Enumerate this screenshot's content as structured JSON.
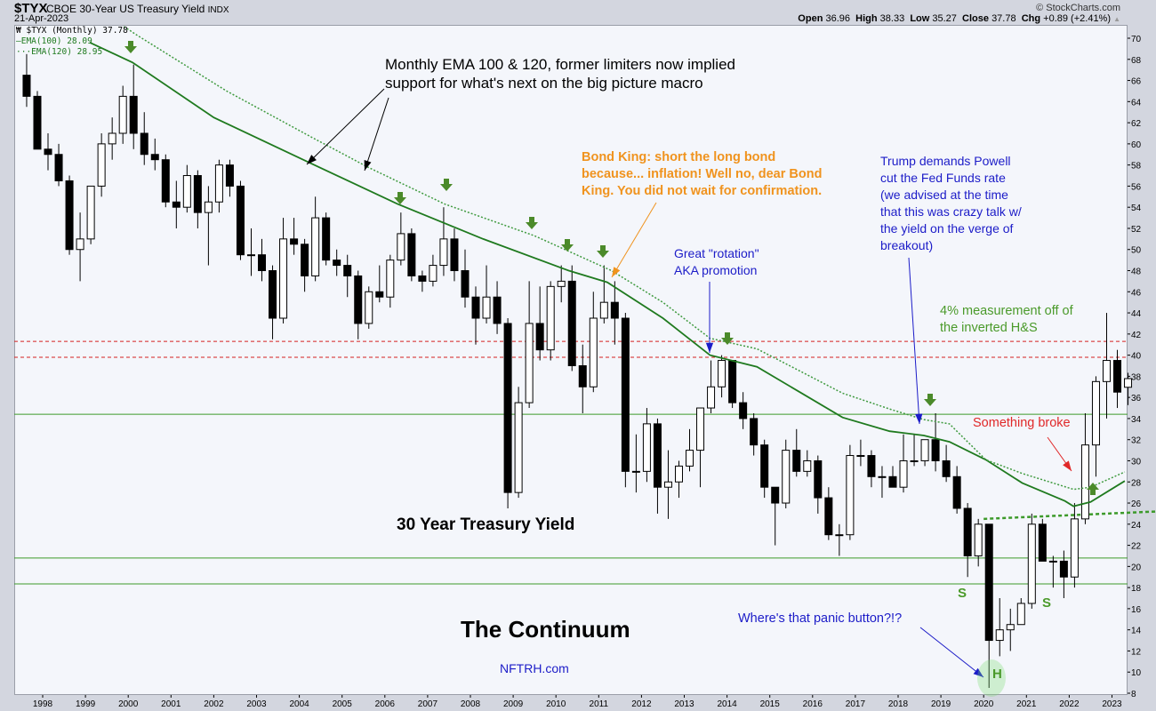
{
  "header": {
    "symbol": "$TYX",
    "name": "CBOE 30-Year US Treasury Yield",
    "exchange": "INDX",
    "date": "21-Apr-2023",
    "brand": "© StockCharts.com",
    "open_label": "Open",
    "open": "36.96",
    "high_label": "High",
    "high": "38.33",
    "low_label": "Low",
    "low": "35.27",
    "close_label": "Close",
    "close": "37.78",
    "chg_label": "Chg",
    "chg": "+0.89 (+2.41%)"
  },
  "legend": {
    "price": "$TYX (Monthly) 37.78",
    "ema100": "EMA(100) 28.09",
    "ema120": "EMA(120) 28.95"
  },
  "colors": {
    "ema": "#1f7a1f",
    "support_line": "#3c9a2a",
    "resistance_line": "#d42020",
    "arrow_green": "#4b8a2a",
    "annotation_orange": "#f0931e",
    "annotation_blue": "#1c1cc8",
    "annotation_green": "#4a9a2a",
    "annotation_red": "#e02828"
  },
  "annotations": {
    "ema_note": [
      "Monthly EMA 100 & 120, former limiters now implied",
      "support for what's next on the big picture macro"
    ],
    "bond_king": [
      "Bond King: short the long bond",
      "because... inflation! Well no, dear Bond",
      "King. You did not wait for confirmation."
    ],
    "rotation": [
      "Great \"rotation\"",
      "AKA promotion"
    ],
    "trump": [
      "Trump demands Powell",
      "cut the Fed Funds rate",
      "(we advised at the time",
      "that this was crazy talk w/",
      "the yield on the verge of",
      "breakout)"
    ],
    "measurement": [
      "4% measurement off of",
      "the inverted H&S"
    ],
    "broke": "Something broke",
    "panic": "Where's that panic button?!?",
    "title": "30 Year Treasury Yield",
    "continuum": "The Continuum",
    "site": "NFTRH.com",
    "shoulder_left": "S",
    "shoulder_right": "S",
    "head": "H"
  },
  "chart_data": {
    "type": "candlestick",
    "interval": "quarterly (approximated from monthly bars)",
    "ylim": [
      8,
      70
    ],
    "yticks": [
      8,
      10,
      12,
      14,
      16,
      18,
      20,
      22,
      24,
      26,
      28,
      30,
      32,
      34,
      36,
      38,
      40,
      42,
      44,
      46,
      48,
      50,
      52,
      54,
      56,
      58,
      60,
      62,
      64,
      66,
      68,
      70
    ],
    "xticks": [
      "1998",
      "1999",
      "2000",
      "2001",
      "2002",
      "2003",
      "2004",
      "2005",
      "2006",
      "2007",
      "2008",
      "2009",
      "2010",
      "2011",
      "2012",
      "2013",
      "2014",
      "2015",
      "2016",
      "2017",
      "2018",
      "2019",
      "2020",
      "2021",
      "2022",
      "2023"
    ],
    "grid": false,
    "axis_position": "right",
    "candles_columns": [
      "period",
      "open",
      "high",
      "low",
      "close"
    ],
    "candles": [
      [
        "1997Q3",
        66.5,
        68.5,
        63.5,
        64.5
      ],
      [
        "1997Q4",
        64.5,
        65,
        59.5,
        59.5
      ],
      [
        "1998Q1",
        59.5,
        61,
        57.5,
        59
      ],
      [
        "1998Q2",
        59,
        60,
        56,
        56.5
      ],
      [
        "1998Q3",
        56.5,
        57,
        49.5,
        50
      ],
      [
        "1998Q4",
        50,
        53.5,
        47,
        51
      ],
      [
        "1999Q1",
        51,
        56,
        50.5,
        56
      ],
      [
        "1999Q2",
        56,
        61,
        55,
        60
      ],
      [
        "1999Q3",
        60,
        62.5,
        58.5,
        61
      ],
      [
        "1999Q4",
        61,
        65.5,
        60,
        64.5
      ],
      [
        "2000Q1",
        64.5,
        67.5,
        59.5,
        61
      ],
      [
        "2000Q2",
        61,
        63,
        58,
        59
      ],
      [
        "2000Q3",
        59,
        60.5,
        57.5,
        58.5
      ],
      [
        "2000Q4",
        58.5,
        59,
        54,
        54.5
      ],
      [
        "2001Q1",
        54.5,
        56.5,
        52,
        54
      ],
      [
        "2001Q2",
        54,
        58,
        53.5,
        57
      ],
      [
        "2001Q3",
        57,
        57.5,
        52,
        53.5
      ],
      [
        "2001Q4",
        53.5,
        56,
        48.5,
        54.5
      ],
      [
        "2002Q1",
        54.5,
        58.5,
        53.5,
        58
      ],
      [
        "2002Q2",
        58,
        58.5,
        55,
        56
      ],
      [
        "2002Q3",
        56,
        56.5,
        49,
        49.5
      ],
      [
        "2002Q4",
        49.5,
        52,
        47.5,
        49.5
      ],
      [
        "2003Q1",
        49.5,
        51,
        47,
        48
      ],
      [
        "2003Q2",
        48,
        48.5,
        41.5,
        43.5
      ],
      [
        "2003Q3",
        43.5,
        53,
        43,
        51
      ],
      [
        "2003Q4",
        51,
        53,
        49.5,
        50.5
      ],
      [
        "2004Q1",
        50.5,
        51,
        46,
        47.5
      ],
      [
        "2004Q2",
        47.5,
        55,
        47,
        53
      ],
      [
        "2004Q3",
        53,
        53.5,
        48.5,
        49
      ],
      [
        "2004Q4",
        49,
        50,
        47.5,
        48.5
      ],
      [
        "2005Q1",
        48.5,
        49.5,
        45.5,
        47.5
      ],
      [
        "2005Q2",
        47.5,
        48,
        41.5,
        43
      ],
      [
        "2005Q3",
        43,
        46.5,
        42.5,
        46
      ],
      [
        "2005Q4",
        46,
        48.5,
        45,
        45.5
      ],
      [
        "2006Q1",
        45.5,
        49.5,
        44.5,
        49
      ],
      [
        "2006Q2",
        49,
        53.5,
        48.5,
        51.5
      ],
      [
        "2006Q3",
        51.5,
        52,
        47,
        47.5
      ],
      [
        "2006Q4",
        47.5,
        48,
        46,
        47
      ],
      [
        "2007Q1",
        47,
        49.5,
        46.5,
        48.5
      ],
      [
        "2007Q2",
        48.5,
        54,
        47.5,
        51
      ],
      [
        "2007Q3",
        51,
        52,
        47,
        48
      ],
      [
        "2007Q4",
        48,
        50,
        44.5,
        45.5
      ],
      [
        "2008Q1",
        45.5,
        46.5,
        41,
        43.5
      ],
      [
        "2008Q2",
        43.5,
        48.5,
        43,
        45.5
      ],
      [
        "2008Q3",
        45.5,
        47,
        42,
        43
      ],
      [
        "2008Q4",
        43,
        43.5,
        25.5,
        27
      ],
      [
        "2009Q1",
        27,
        37,
        26.5,
        35.5
      ],
      [
        "2009Q2",
        35.5,
        47,
        35,
        43
      ],
      [
        "2009Q3",
        43,
        46.5,
        39.5,
        40.5
      ],
      [
        "2009Q4",
        40.5,
        47,
        39.5,
        46.5
      ],
      [
        "2010Q1",
        46.5,
        48.5,
        45,
        47
      ],
      [
        "2010Q2",
        47,
        48.5,
        38.5,
        39
      ],
      [
        "2010Q3",
        39,
        41,
        34.5,
        37
      ],
      [
        "2010Q4",
        37,
        46,
        36.5,
        43.5
      ],
      [
        "2011Q1",
        43.5,
        48.5,
        43,
        45
      ],
      [
        "2011Q2",
        45,
        47,
        41,
        43.5
      ],
      [
        "2011Q3",
        43.5,
        44,
        27.5,
        29
      ],
      [
        "2011Q4",
        29,
        32.5,
        27,
        29
      ],
      [
        "2012Q1",
        29,
        35,
        28,
        33.5
      ],
      [
        "2012Q2",
        33.5,
        34,
        25,
        27.5
      ],
      [
        "2012Q3",
        27.5,
        31,
        24.5,
        28
      ],
      [
        "2012Q4",
        28,
        30,
        26.5,
        29.5
      ],
      [
        "2013Q1",
        29.5,
        33,
        29,
        31
      ],
      [
        "2013Q2",
        31,
        35,
        27.5,
        35
      ],
      [
        "2013Q3",
        35,
        39.5,
        34.5,
        37
      ],
      [
        "2013Q4",
        37,
        40,
        36,
        39.5
      ],
      [
        "2014Q1",
        39.5,
        39.5,
        35,
        35.5
      ],
      [
        "2014Q2",
        35.5,
        36.5,
        33,
        34
      ],
      [
        "2014Q3",
        34,
        34.5,
        30.5,
        31.5
      ],
      [
        "2014Q4",
        31.5,
        32,
        26.5,
        27.5
      ],
      [
        "2015Q1",
        27.5,
        27.5,
        22,
        26
      ],
      [
        "2015Q2",
        26,
        32,
        25.5,
        31
      ],
      [
        "2015Q3",
        31,
        33,
        28.5,
        29
      ],
      [
        "2015Q4",
        29,
        31,
        28.5,
        30
      ],
      [
        "2016Q1",
        30,
        30.5,
        25,
        26.5
      ],
      [
        "2016Q2",
        26.5,
        27.5,
        22.5,
        23
      ],
      [
        "2016Q3",
        23,
        24,
        21,
        23
      ],
      [
        "2016Q4",
        23,
        31.5,
        22.5,
        30.5
      ],
      [
        "2017Q1",
        30.5,
        32,
        29.5,
        30.5
      ],
      [
        "2017Q2",
        30.5,
        31,
        27.5,
        28.5
      ],
      [
        "2017Q3",
        28.5,
        29.5,
        26.5,
        28.5
      ],
      [
        "2017Q4",
        28.5,
        29.5,
        27.5,
        27.5
      ],
      [
        "2018Q1",
        27.5,
        32.5,
        27,
        30
      ],
      [
        "2018Q2",
        30,
        32.5,
        29.5,
        30
      ],
      [
        "2018Q3",
        30,
        32,
        29.5,
        32
      ],
      [
        "2018Q4",
        32,
        34.5,
        29,
        30
      ],
      [
        "2019Q1",
        30,
        31.5,
        28,
        28.5
      ],
      [
        "2019Q2",
        28.5,
        29.5,
        25,
        25.5
      ],
      [
        "2019Q3",
        25.5,
        26,
        19,
        21
      ],
      [
        "2019Q4",
        21,
        24.5,
        20,
        24
      ],
      [
        "2020Q1",
        24,
        24,
        8.5,
        13
      ],
      [
        "2020Q2",
        13,
        17,
        11.5,
        14
      ],
      [
        "2020Q3",
        14,
        16,
        12,
        14.5
      ],
      [
        "2020Q4",
        14.5,
        17,
        14.5,
        16.5
      ],
      [
        "2021Q1",
        16.5,
        25,
        16,
        24
      ],
      [
        "2021Q2",
        24,
        24.5,
        20.5,
        20.5
      ],
      [
        "2021Q3",
        20.5,
        21,
        18,
        20.5
      ],
      [
        "2021Q4",
        20.5,
        21.5,
        17,
        19
      ],
      [
        "2022Q1",
        19,
        26,
        18,
        24.5
      ],
      [
        "2022Q2",
        24.5,
        34.5,
        24,
        31.5
      ],
      [
        "2022Q3",
        31.5,
        38,
        28.5,
        37.5
      ],
      [
        "2022Q4",
        37.5,
        44,
        34,
        39.5
      ],
      [
        "2023Q1",
        39.5,
        40.5,
        35,
        36.5
      ],
      [
        "2023Q2",
        36.96,
        38.33,
        35.27,
        37.78
      ]
    ],
    "ema100": [
      [
        1999.1,
        69.6
      ],
      [
        2000.1,
        67.7
      ],
      [
        2002.0,
        62.5
      ],
      [
        2004.25,
        58.2
      ],
      [
        2006.3,
        54.3
      ],
      [
        2008.3,
        51
      ],
      [
        2010.3,
        48
      ],
      [
        2011.2,
        46.9
      ],
      [
        2012.5,
        43.5
      ],
      [
        2013.6,
        40
      ],
      [
        2014.7,
        38.9
      ],
      [
        2015.7,
        36.5
      ],
      [
        2016.7,
        34.1
      ],
      [
        2017.8,
        32.8
      ],
      [
        2018.6,
        32.4
      ],
      [
        2019.2,
        31.8
      ],
      [
        2020.05,
        30.1
      ],
      [
        2020.9,
        27.9
      ],
      [
        2021.9,
        26.2
      ],
      [
        2022.1,
        25.7
      ],
      [
        2022.5,
        26.1
      ],
      [
        2023.3,
        28.09
      ]
    ],
    "ema120": [
      [
        1999.9,
        71.1
      ],
      [
        2000.2,
        70.3
      ],
      [
        2002.3,
        65
      ],
      [
        2004.3,
        60.6
      ],
      [
        2005.6,
        57.8
      ],
      [
        2007.4,
        54.3
      ],
      [
        2009.5,
        51.3
      ],
      [
        2011.3,
        48
      ],
      [
        2012.5,
        45
      ],
      [
        2013.6,
        41.6
      ],
      [
        2014.7,
        40.6
      ],
      [
        2015.7,
        38.5
      ],
      [
        2016.7,
        36.4
      ],
      [
        2017.8,
        34.9
      ],
      [
        2018.6,
        33.9
      ],
      [
        2019.2,
        33.5
      ],
      [
        2020.05,
        30.1
      ],
      [
        2020.9,
        28.8
      ],
      [
        2022.1,
        27.3
      ],
      [
        2022.5,
        27.5
      ],
      [
        2023.3,
        28.95
      ]
    ],
    "horizontal_levels": {
      "red_dashed": [
        41.3,
        39.8
      ],
      "green_solid": [
        34.4,
        20.8,
        18.35
      ]
    },
    "neckline": [
      [
        2020.0,
        24.5
      ],
      [
        2024.0,
        25.2
      ]
    ]
  }
}
